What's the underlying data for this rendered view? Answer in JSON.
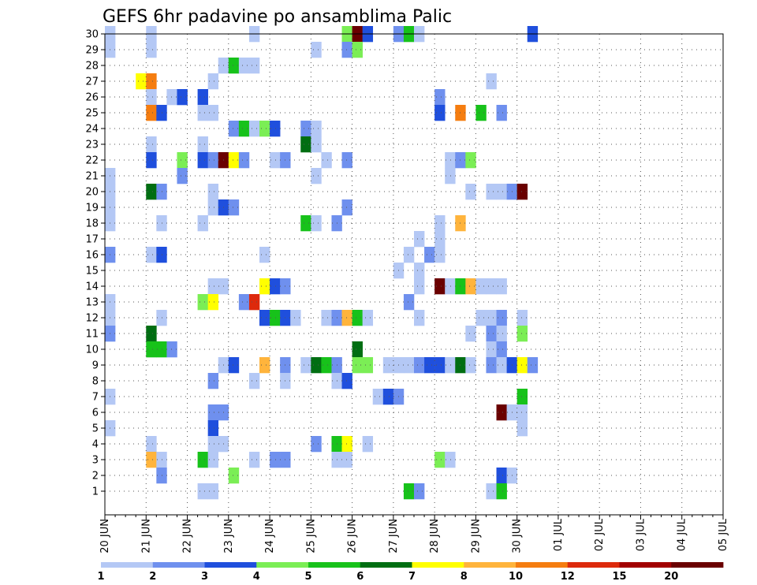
{
  "chart_data": {
    "type": "heatmap",
    "title": "GEFS 6hr padavine po ansamblima Palic",
    "y_ticks": [
      1,
      2,
      3,
      4,
      5,
      6,
      7,
      8,
      9,
      10,
      11,
      12,
      13,
      14,
      15,
      16,
      17,
      18,
      19,
      20,
      21,
      22,
      23,
      24,
      25,
      26,
      27,
      28,
      29,
      30
    ],
    "x_tick_labels": [
      "20 JUN",
      "21 JUN",
      "22 JUN",
      "23 JUN",
      "24 JUN",
      "25 JUN",
      "26 JUN",
      "27 JUN",
      "28 JUN",
      "29 JUN",
      "30 JUN",
      "01 JUL",
      "02 JUL",
      "03 JUL",
      "04 JUL",
      "05 JUL"
    ],
    "colorbar": {
      "labels": [
        "1",
        "2",
        "3",
        "4",
        "5",
        "6",
        "7",
        "8",
        "10",
        "12",
        "15",
        "20"
      ],
      "colors": [
        "#b4c8f5",
        "#6f90ee",
        "#1f4fdd",
        "#7bee55",
        "#17c21a",
        "#006e12",
        "#ffff00",
        "#ffb43c",
        "#f57d10",
        "#dd2a0c",
        "#a20000",
        "#6a0000"
      ]
    },
    "steps_per_day": 4,
    "grid": true,
    "cells": [
      [
        0,
        30,
        0
      ],
      [
        4,
        30,
        0
      ],
      [
        14,
        30,
        0
      ],
      [
        23,
        30,
        3
      ],
      [
        24,
        30,
        11
      ],
      [
        25,
        30,
        2
      ],
      [
        28,
        30,
        1
      ],
      [
        29,
        30,
        4
      ],
      [
        30,
        30,
        0
      ],
      [
        41,
        30,
        2
      ],
      [
        0,
        29,
        0
      ],
      [
        4,
        29,
        0
      ],
      [
        23,
        29,
        1
      ],
      [
        24,
        29,
        3
      ],
      [
        20,
        29,
        0
      ],
      [
        11,
        28,
        0
      ],
      [
        12,
        28,
        4
      ],
      [
        13,
        28,
        0
      ],
      [
        14,
        28,
        0
      ],
      [
        3,
        27,
        6
      ],
      [
        4,
        27,
        8
      ],
      [
        10,
        27,
        0
      ],
      [
        37,
        27,
        0
      ],
      [
        4,
        26,
        0
      ],
      [
        6,
        26,
        0
      ],
      [
        7,
        26,
        2
      ],
      [
        9,
        26,
        2
      ],
      [
        32,
        26,
        1
      ],
      [
        4,
        25,
        8
      ],
      [
        5,
        25,
        2
      ],
      [
        9,
        25,
        0
      ],
      [
        10,
        25,
        0
      ],
      [
        32,
        25,
        2
      ],
      [
        34,
        25,
        8
      ],
      [
        36,
        25,
        4
      ],
      [
        38,
        25,
        1
      ],
      [
        12,
        24,
        1
      ],
      [
        13,
        24,
        4
      ],
      [
        14,
        24,
        0
      ],
      [
        15,
        24,
        3
      ],
      [
        16,
        24,
        2
      ],
      [
        19,
        24,
        1
      ],
      [
        20,
        24,
        0
      ],
      [
        4,
        23,
        0
      ],
      [
        9,
        23,
        0
      ],
      [
        19,
        23,
        5
      ],
      [
        20,
        23,
        0
      ],
      [
        4,
        22,
        2
      ],
      [
        7,
        22,
        3
      ],
      [
        9,
        22,
        2
      ],
      [
        10,
        22,
        1
      ],
      [
        11,
        22,
        11
      ],
      [
        12,
        22,
        6
      ],
      [
        13,
        22,
        1
      ],
      [
        16,
        22,
        0
      ],
      [
        17,
        22,
        1
      ],
      [
        21,
        22,
        0
      ],
      [
        23,
        22,
        1
      ],
      [
        33,
        22,
        0
      ],
      [
        34,
        22,
        1
      ],
      [
        35,
        22,
        3
      ],
      [
        0,
        21,
        0
      ],
      [
        7,
        21,
        1
      ],
      [
        20,
        21,
        0
      ],
      [
        33,
        21,
        0
      ],
      [
        0,
        20,
        0
      ],
      [
        4,
        20,
        5
      ],
      [
        5,
        20,
        1
      ],
      [
        10,
        20,
        0
      ],
      [
        35,
        20,
        0
      ],
      [
        37,
        20,
        0
      ],
      [
        38,
        20,
        0
      ],
      [
        39,
        20,
        1
      ],
      [
        40,
        20,
        11
      ],
      [
        0,
        19,
        0
      ],
      [
        10,
        19,
        0
      ],
      [
        11,
        19,
        2
      ],
      [
        12,
        19,
        1
      ],
      [
        23,
        19,
        1
      ],
      [
        0,
        18,
        0
      ],
      [
        5,
        18,
        0
      ],
      [
        9,
        18,
        0
      ],
      [
        19,
        18,
        4
      ],
      [
        20,
        18,
        0
      ],
      [
        22,
        18,
        1
      ],
      [
        32,
        18,
        0
      ],
      [
        34,
        18,
        7
      ],
      [
        30,
        17,
        0
      ],
      [
        32,
        17,
        0
      ],
      [
        0,
        16,
        1
      ],
      [
        4,
        16,
        0
      ],
      [
        5,
        16,
        2
      ],
      [
        15,
        16,
        0
      ],
      [
        29,
        16,
        0
      ],
      [
        31,
        16,
        1
      ],
      [
        32,
        16,
        0
      ],
      [
        28,
        15,
        0
      ],
      [
        30,
        15,
        0
      ],
      [
        10,
        14,
        0
      ],
      [
        11,
        14,
        0
      ],
      [
        15,
        14,
        6
      ],
      [
        16,
        14,
        2
      ],
      [
        17,
        14,
        1
      ],
      [
        30,
        14,
        0
      ],
      [
        32,
        14,
        11
      ],
      [
        33,
        14,
        0
      ],
      [
        34,
        14,
        4
      ],
      [
        35,
        14,
        7
      ],
      [
        36,
        14,
        0
      ],
      [
        37,
        14,
        0
      ],
      [
        38,
        14,
        0
      ],
      [
        0,
        13,
        0
      ],
      [
        9,
        13,
        3
      ],
      [
        10,
        13,
        6
      ],
      [
        13,
        13,
        1
      ],
      [
        14,
        13,
        9
      ],
      [
        29,
        13,
        1
      ],
      [
        0,
        12,
        0
      ],
      [
        5,
        12,
        0
      ],
      [
        15,
        12,
        2
      ],
      [
        16,
        12,
        4
      ],
      [
        17,
        12,
        2
      ],
      [
        18,
        12,
        0
      ],
      [
        21,
        12,
        0
      ],
      [
        22,
        12,
        1
      ],
      [
        23,
        12,
        7
      ],
      [
        24,
        12,
        4
      ],
      [
        25,
        12,
        0
      ],
      [
        30,
        12,
        0
      ],
      [
        36,
        12,
        0
      ],
      [
        37,
        12,
        0
      ],
      [
        38,
        12,
        1
      ],
      [
        40,
        12,
        0
      ],
      [
        0,
        11,
        1
      ],
      [
        4,
        11,
        5
      ],
      [
        35,
        11,
        0
      ],
      [
        37,
        11,
        1
      ],
      [
        38,
        11,
        0
      ],
      [
        40,
        11,
        3
      ],
      [
        4,
        10,
        4
      ],
      [
        5,
        10,
        4
      ],
      [
        6,
        10,
        1
      ],
      [
        24,
        10,
        5
      ],
      [
        37,
        10,
        0
      ],
      [
        38,
        10,
        1
      ],
      [
        11,
        9,
        0
      ],
      [
        12,
        9,
        2
      ],
      [
        15,
        9,
        7
      ],
      [
        17,
        9,
        1
      ],
      [
        19,
        9,
        0
      ],
      [
        20,
        9,
        5
      ],
      [
        21,
        9,
        4
      ],
      [
        22,
        9,
        1
      ],
      [
        24,
        9,
        3
      ],
      [
        25,
        9,
        3
      ],
      [
        27,
        9,
        0
      ],
      [
        28,
        9,
        0
      ],
      [
        29,
        9,
        0
      ],
      [
        30,
        9,
        1
      ],
      [
        31,
        9,
        2
      ],
      [
        32,
        9,
        2
      ],
      [
        33,
        9,
        0
      ],
      [
        34,
        9,
        5
      ],
      [
        35,
        9,
        0
      ],
      [
        37,
        9,
        1
      ],
      [
        38,
        9,
        0
      ],
      [
        39,
        9,
        2
      ],
      [
        40,
        9,
        6
      ],
      [
        41,
        9,
        1
      ],
      [
        10,
        8,
        1
      ],
      [
        14,
        8,
        0
      ],
      [
        17,
        8,
        0
      ],
      [
        22,
        8,
        0
      ],
      [
        23,
        8,
        2
      ],
      [
        0,
        7,
        0
      ],
      [
        26,
        7,
        0
      ],
      [
        27,
        7,
        2
      ],
      [
        28,
        7,
        1
      ],
      [
        40,
        7,
        4
      ],
      [
        10,
        6,
        1
      ],
      [
        11,
        6,
        1
      ],
      [
        38,
        6,
        11
      ],
      [
        39,
        6,
        0
      ],
      [
        40,
        6,
        0
      ],
      [
        0,
        5,
        0
      ],
      [
        10,
        5,
        2
      ],
      [
        40,
        5,
        0
      ],
      [
        4,
        4,
        0
      ],
      [
        10,
        4,
        0
      ],
      [
        11,
        4,
        0
      ],
      [
        20,
        4,
        1
      ],
      [
        22,
        4,
        4
      ],
      [
        23,
        4,
        6
      ],
      [
        25,
        4,
        0
      ],
      [
        4,
        3,
        7
      ],
      [
        5,
        3,
        0
      ],
      [
        9,
        3,
        4
      ],
      [
        10,
        3,
        0
      ],
      [
        14,
        3,
        0
      ],
      [
        16,
        3,
        1
      ],
      [
        17,
        3,
        1
      ],
      [
        22,
        3,
        0
      ],
      [
        23,
        3,
        0
      ],
      [
        32,
        3,
        3
      ],
      [
        33,
        3,
        0
      ],
      [
        5,
        2,
        1
      ],
      [
        12,
        2,
        3
      ],
      [
        38,
        2,
        2
      ],
      [
        39,
        2,
        0
      ],
      [
        9,
        1,
        0
      ],
      [
        10,
        1,
        0
      ],
      [
        29,
        1,
        4
      ],
      [
        30,
        1,
        1
      ],
      [
        37,
        1,
        0
      ],
      [
        38,
        1,
        4
      ]
    ]
  }
}
